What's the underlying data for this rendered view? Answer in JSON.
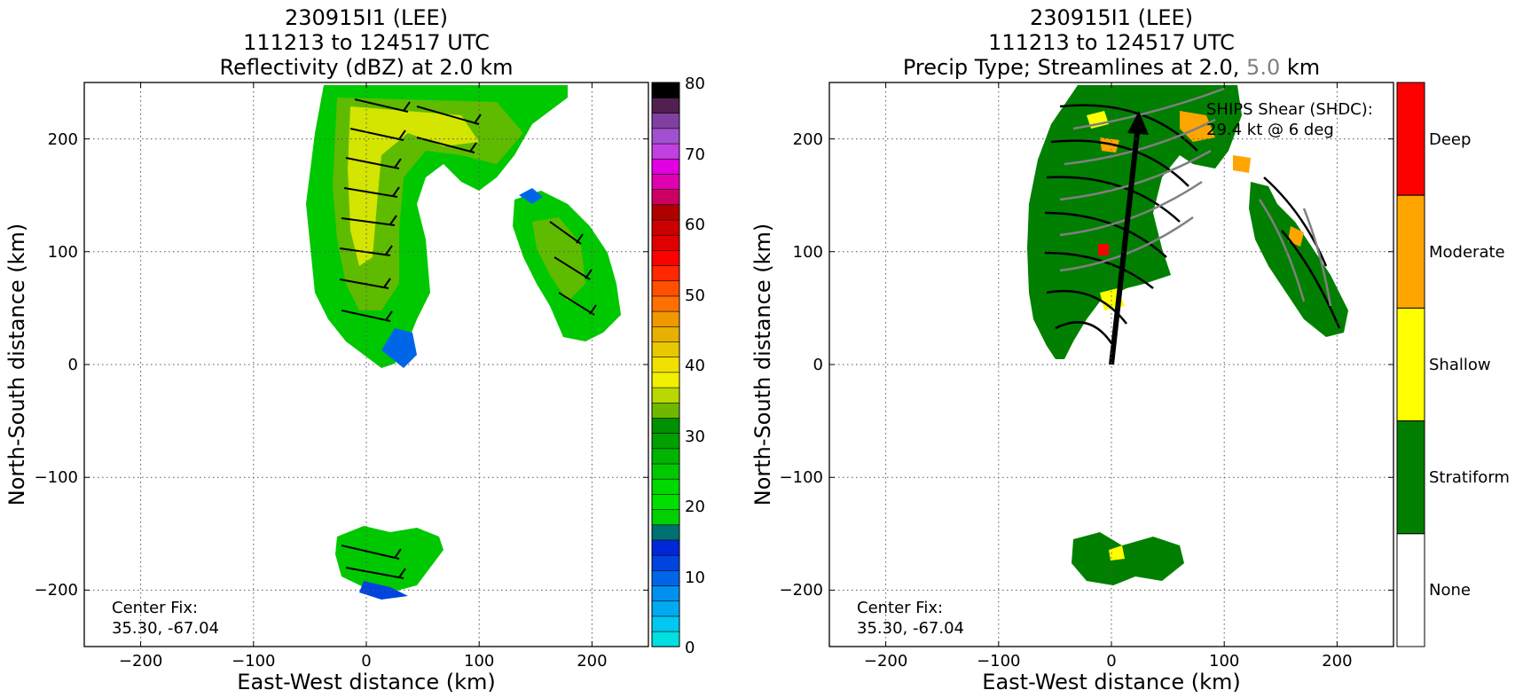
{
  "figure": {
    "left_panel": {
      "title_line1": "230915I1 (LEE)",
      "title_line2": "111213 to 124517 UTC",
      "title_line3": "Reflectivity (dBZ) at 2.0 km",
      "xlabel": "East-West distance (km)",
      "ylabel": "North-South distance (km)",
      "center_fix_label": "Center Fix:",
      "center_fix_value": "35.30, -67.04"
    },
    "right_panel": {
      "title_line1": "230915I1 (LEE)",
      "title_line2": "111213 to 124517 UTC",
      "title_line3_prefix": "Precip Type; Streamlines at 2.0, ",
      "title_line3_grey": "5.0",
      "title_line3_suffix": " km",
      "xlabel": "East-West distance (km)",
      "ylabel": "North-South distance (km)",
      "center_fix_label": "Center Fix:",
      "center_fix_value": "35.30, -67.04",
      "shear_label": "SHIPS Shear (SHDC):",
      "shear_value": "29.4 kt @ 6 deg"
    },
    "colors": {
      "stratiform": "#007f00",
      "shallow": "#ffff00",
      "moderate": "#ffa500",
      "deep": "#ff0000",
      "none": "#ffffff",
      "grey_streamline": "#808080"
    }
  },
  "chart_data": [
    {
      "type": "heatmap",
      "title": "230915I1 (LEE) 111213 to 124517 UTC Reflectivity (dBZ) at 2.0 km",
      "xlabel": "East-West distance (km)",
      "ylabel": "North-South distance (km)",
      "xlim": [
        -250,
        250
      ],
      "ylim": [
        -250,
        250
      ],
      "xticks": [
        -200,
        -100,
        0,
        100,
        200
      ],
      "yticks": [
        -200,
        -100,
        0,
        100,
        200
      ],
      "xtick_labels": [
        "−200",
        "−100",
        "0",
        "100",
        "200"
      ],
      "ytick_labels": [
        "−200",
        "−100",
        "0",
        "100",
        "200"
      ],
      "grid": true,
      "colorbar": {
        "min": 0,
        "max": 80,
        "ticks": [
          0,
          10,
          20,
          30,
          40,
          50,
          60,
          70,
          80
        ],
        "tick_labels": [
          "0",
          "10",
          "20",
          "30",
          "40",
          "50",
          "60",
          "70",
          "80"
        ],
        "colors": [
          "#00e0e0",
          "#00c8f0",
          "#00aaf0",
          "#0090f0",
          "#0066e8",
          "#0044e0",
          "#0028d8",
          "#007070",
          "#00d000",
          "#00e000",
          "#00d800",
          "#00c800",
          "#00b400",
          "#00a000",
          "#009000",
          "#70b800",
          "#b8d800",
          "#f0f000",
          "#f0e000",
          "#e8c800",
          "#e8b000",
          "#f09800",
          "#ff7000",
          "#ff5000",
          "#ff2800",
          "#ff0000",
          "#e00000",
          "#cc0000",
          "#b00000",
          "#cc0060",
          "#e000b0",
          "#e000e0",
          "#c040e0",
          "#a050d0",
          "#8040a0",
          "#502050",
          "#000000"
        ]
      },
      "regions": [
        {
          "name": "northern band",
          "center_dbz": 32,
          "extent_km": {
            "x": [
              -50,
              180
            ],
            "y": [
              0,
              250
            ]
          }
        },
        {
          "name": "northeast band",
          "center_dbz": 27,
          "extent_km": {
            "x": [
              130,
              225
            ],
            "y": [
              20,
              170
            ]
          }
        },
        {
          "name": "southern cluster",
          "center_dbz": 25,
          "extent_km": {
            "x": [
              -25,
              75
            ],
            "y": [
              -205,
              -135
            ]
          }
        }
      ],
      "annotation": "Center Fix: 35.30, -67.04"
    },
    {
      "type": "heatmap",
      "title": "230915I1 (LEE) 111213 to 124517 UTC Precip Type; Streamlines at 2.0, 5.0 km",
      "xlabel": "East-West distance (km)",
      "ylabel": "North-South distance (km)",
      "xlim": [
        -250,
        250
      ],
      "ylim": [
        -250,
        250
      ],
      "xticks": [
        -200,
        -100,
        0,
        100,
        200
      ],
      "yticks": [
        -200,
        -100,
        0,
        100,
        200
      ],
      "xtick_labels": [
        "−200",
        "−100",
        "0",
        "100",
        "200"
      ],
      "ytick_labels": [
        "−200",
        "−100",
        "0",
        "100",
        "200"
      ],
      "grid": true,
      "categories": [
        "None",
        "Stratiform",
        "Shallow",
        "Moderate",
        "Deep"
      ],
      "category_colors": [
        "#ffffff",
        "#007f00",
        "#ffff00",
        "#ffa500",
        "#ff0000"
      ],
      "shear_vector": {
        "speed_kt": 29.4,
        "direction_deg": 6
      },
      "annotations": [
        "Center Fix: 35.30, -67.04",
        "SHIPS Shear (SHDC): 29.4 kt @ 6 deg"
      ]
    }
  ]
}
